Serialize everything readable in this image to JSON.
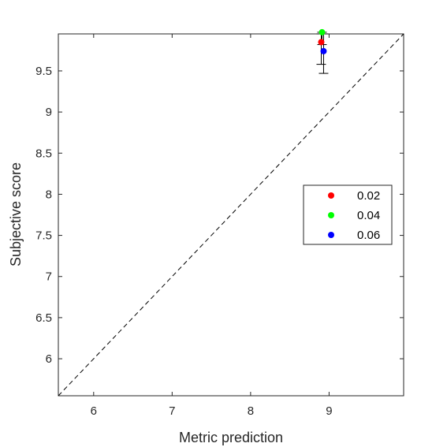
{
  "chart_data": {
    "type": "scatter",
    "title": "",
    "xlabel": "Metric prediction",
    "ylabel": "Subjective score",
    "xlim": [
      5.55,
      9.95
    ],
    "ylim": [
      5.55,
      9.95
    ],
    "xticks": [
      6,
      7,
      8,
      9
    ],
    "yticks": [
      6,
      6.5,
      7,
      7.5,
      8,
      8.5,
      9,
      9.5
    ],
    "xtick_labels": [
      "6",
      "7",
      "8",
      "9"
    ],
    "ytick_labels": [
      "6",
      "6.5",
      "7",
      "7.5",
      "8",
      "8.5",
      "9",
      "9.5"
    ],
    "grid": false,
    "reference_line": "y = x (dashed)",
    "legend_position": "right",
    "series": [
      {
        "name": "0.02",
        "color": "#ff0000",
        "x": [
          8.9
        ],
        "y": [
          9.85
        ],
        "err_low": [
          9.58
        ],
        "err_high": [
          9.95
        ]
      },
      {
        "name": "0.04",
        "color": "#00ff00",
        "x": [
          8.91
        ],
        "y": [
          9.97
        ],
        "err_low": [
          9.82
        ],
        "err_high": [
          9.97
        ]
      },
      {
        "name": "0.06",
        "color": "#0000ff",
        "x": [
          8.93
        ],
        "y": [
          9.74
        ],
        "err_low": [
          9.47
        ],
        "err_high": [
          9.95
        ]
      }
    ]
  }
}
